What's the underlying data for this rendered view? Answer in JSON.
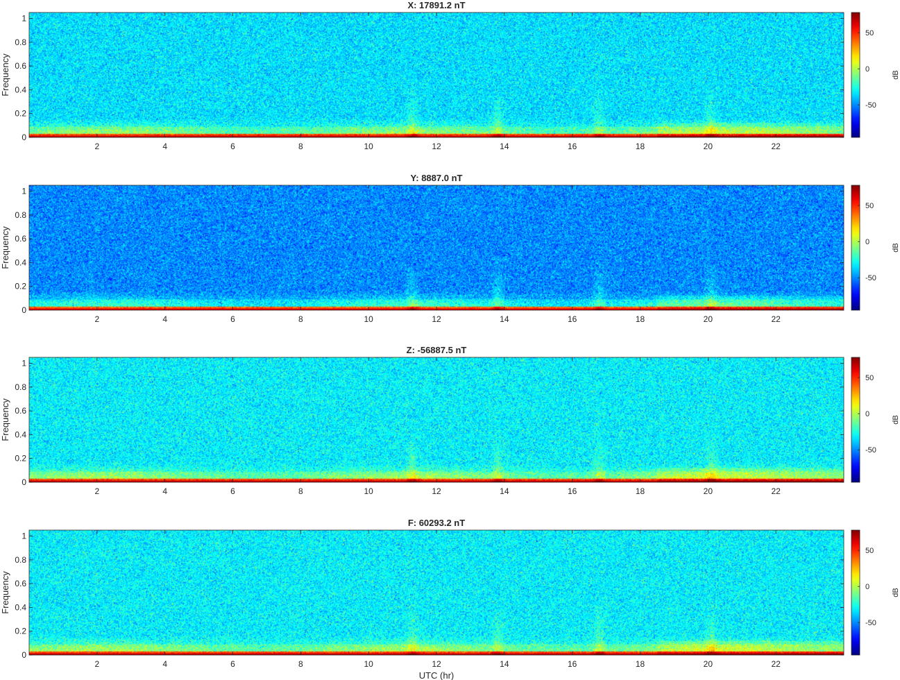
{
  "chart_data": [
    {
      "type": "heatmap",
      "title": "X: 17891.2 nT",
      "xlabel": "",
      "ylabel": "Frequency",
      "xlim": [
        0,
        24
      ],
      "ylim": [
        0,
        1.05
      ],
      "xticks": [
        2,
        4,
        6,
        8,
        10,
        12,
        14,
        16,
        18,
        20,
        22
      ],
      "yticks": [
        0,
        0.2,
        0.4,
        0.6,
        0.8,
        1
      ],
      "colorbar": {
        "label": "dB",
        "clim": [
          -95,
          78
        ],
        "ticks": [
          -50,
          0,
          50
        ],
        "colormap": "jet",
        "placement": "right"
      },
      "background_level_db": -35,
      "features": {
        "low_frequency_band_db": 45,
        "broadband_bursts_hr": [
          11.3,
          13.8,
          16.8,
          20.1
        ]
      }
    },
    {
      "type": "heatmap",
      "title": "Y: 8887.0 nT",
      "xlabel": "",
      "ylabel": "Frequency",
      "xlim": [
        0,
        24
      ],
      "ylim": [
        0,
        1.05
      ],
      "xticks": [
        2,
        4,
        6,
        8,
        10,
        12,
        14,
        16,
        18,
        20,
        22
      ],
      "yticks": [
        0,
        0.2,
        0.4,
        0.6,
        0.8,
        1
      ],
      "colorbar": {
        "label": "dB",
        "clim": [
          -95,
          78
        ],
        "ticks": [
          -50,
          0,
          50
        ],
        "colormap": "jet",
        "placement": "right"
      },
      "background_level_db": -50,
      "features": {
        "low_frequency_band_db": 40,
        "broadband_bursts_hr": [
          11.3,
          13.8,
          16.8,
          20.1
        ]
      }
    },
    {
      "type": "heatmap",
      "title": "Z: -56887.5 nT",
      "xlabel": "",
      "ylabel": "Frequency",
      "xlim": [
        0,
        24
      ],
      "ylim": [
        0,
        1.05
      ],
      "xticks": [
        2,
        4,
        6,
        8,
        10,
        12,
        14,
        16,
        18,
        20,
        22
      ],
      "yticks": [
        0,
        0.2,
        0.4,
        0.6,
        0.8,
        1
      ],
      "colorbar": {
        "label": "dB",
        "clim": [
          -95,
          78
        ],
        "ticks": [
          -50,
          0,
          50
        ],
        "colormap": "jet",
        "placement": "right"
      },
      "background_level_db": -32,
      "features": {
        "low_frequency_band_db": 45,
        "broadband_bursts_hr": [
          11.3,
          13.8,
          16.8,
          20.1
        ]
      }
    },
    {
      "type": "heatmap",
      "title": "F: 60293.2 nT",
      "xlabel": "UTC (hr)",
      "ylabel": "Frequency",
      "xlim": [
        0,
        24
      ],
      "ylim": [
        0,
        1.05
      ],
      "xticks": [
        2,
        4,
        6,
        8,
        10,
        12,
        14,
        16,
        18,
        20,
        22
      ],
      "yticks": [
        0,
        0.2,
        0.4,
        0.6,
        0.8,
        1
      ],
      "colorbar": {
        "label": "dB",
        "clim": [
          -95,
          78
        ],
        "ticks": [
          -50,
          0,
          50
        ],
        "colormap": "jet",
        "placement": "right"
      },
      "background_level_db": -32,
      "features": {
        "low_frequency_band_db": 45,
        "broadband_bursts_hr": [
          11.3,
          13.8,
          16.8,
          20.1
        ]
      }
    }
  ]
}
